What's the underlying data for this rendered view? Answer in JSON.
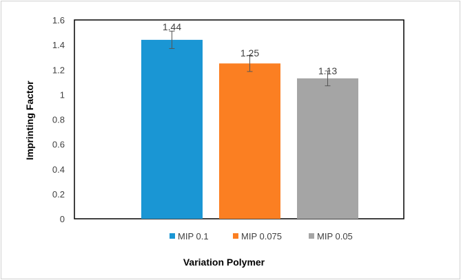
{
  "chart_data": {
    "type": "bar",
    "title": "",
    "xlabel": "Variation Polymer",
    "ylabel": "Imprinting Factor",
    "ylim": [
      0,
      1.6
    ],
    "yticks": [
      "0",
      "0.2",
      "0.4",
      "0.6",
      "0.8",
      "1",
      "1.2",
      "1.4",
      "1.6"
    ],
    "ytick_values": [
      0,
      0.2,
      0.4,
      0.6,
      0.8,
      1,
      1.2,
      1.4,
      1.6
    ],
    "grid": false,
    "legend_position": "bottom",
    "series": [
      {
        "name": "MIP 0.1",
        "value": 1.44,
        "label": "1.44",
        "error": 0.07,
        "color": "#1a96d4"
      },
      {
        "name": "MIP 0.075",
        "value": 1.25,
        "label": "1.25",
        "error": 0.065,
        "color": "#fb7f22"
      },
      {
        "name": "MIP 0.05",
        "value": 1.13,
        "label": "1.13",
        "error": 0.06,
        "color": "#a5a5a5"
      }
    ]
  }
}
